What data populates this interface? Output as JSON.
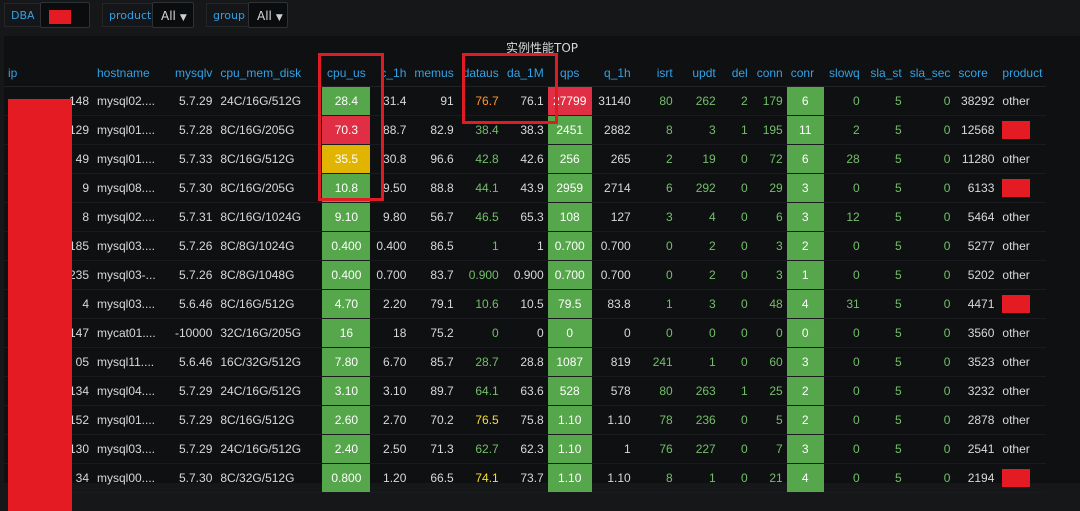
{
  "toolbar": {
    "dba_label": "DBA",
    "dba_value": "",
    "product_label": "product",
    "product_value": "All",
    "group_label": "group",
    "group_value": "All"
  },
  "panel": {
    "title": "实例性能TOP"
  },
  "table": {
    "columns": [
      "ip",
      "hostname",
      "mysqlv",
      "cpu_mem_disk",
      "cpu_us",
      "c_1h",
      "memus",
      "dataus",
      "da_1M",
      "qps",
      "q_1h",
      "isrt",
      "updt",
      "del",
      "conn",
      "conr",
      "slowq",
      "sla_st",
      "sla_sec",
      "score",
      "product"
    ],
    "rows": [
      [
        "148",
        "mysql02....",
        "5.7.29",
        "24C/16G/512G",
        "28.4",
        "31.4",
        "91",
        "76.7",
        "76.1",
        "27799",
        "31140",
        "80",
        "262",
        "2",
        "179",
        "6",
        "0",
        "5",
        "0",
        "38292",
        "other"
      ],
      [
        "129",
        "mysql01....",
        "5.7.28",
        "8C/16G/205G",
        "70.3",
        "88.7",
        "82.9",
        "38.4",
        "38.3",
        "2451",
        "2882",
        "8",
        "3",
        "1",
        "195",
        "11",
        "2",
        "5",
        "0",
        "12568",
        ""
      ],
      [
        "49",
        "mysql01....",
        "5.7.33",
        "8C/16G/512G",
        "35.5",
        "30.8",
        "96.6",
        "42.8",
        "42.6",
        "256",
        "265",
        "2",
        "19",
        "0",
        "72",
        "6",
        "28",
        "5",
        "0",
        "11280",
        "other"
      ],
      [
        "9",
        "mysql08....",
        "5.7.30",
        "8C/16G/205G",
        "10.8",
        "9.50",
        "88.8",
        "44.1",
        "43.9",
        "2959",
        "2714",
        "6",
        "292",
        "0",
        "29",
        "3",
        "0",
        "5",
        "0",
        "6133",
        ""
      ],
      [
        "8",
        "mysql02....",
        "5.7.31",
        "8C/16G/1024G",
        "9.10",
        "9.80",
        "56.7",
        "46.5",
        "65.3",
        "108",
        "127",
        "3",
        "4",
        "0",
        "6",
        "3",
        "12",
        "5",
        "0",
        "5464",
        "other"
      ],
      [
        "185",
        "mysql03....",
        "5.7.26",
        "8C/8G/1024G",
        "0.400",
        "0.400",
        "86.5",
        "1",
        "1",
        "0.700",
        "0.700",
        "0",
        "2",
        "0",
        "3",
        "2",
        "0",
        "5",
        "0",
        "5277",
        "other"
      ],
      [
        "235",
        "mysql03-...",
        "5.7.26",
        "8C/8G/1048G",
        "0.400",
        "0.700",
        "83.7",
        "0.900",
        "0.900",
        "0.700",
        "0.700",
        "0",
        "2",
        "0",
        "3",
        "1",
        "0",
        "5",
        "0",
        "5202",
        "other"
      ],
      [
        "4",
        "mysql03....",
        "5.6.46",
        "8C/16G/512G",
        "4.70",
        "2.20",
        "79.1",
        "10.6",
        "10.5",
        "79.5",
        "83.8",
        "1",
        "3",
        "0",
        "48",
        "4",
        "31",
        "5",
        "0",
        "4471",
        ""
      ],
      [
        "147",
        "mycat01....",
        "-10000",
        "32C/16G/205G",
        "16",
        "18",
        "75.2",
        "0",
        "0",
        "0",
        "0",
        "0",
        "0",
        "0",
        "0",
        "0",
        "0",
        "5",
        "0",
        "3560",
        "other"
      ],
      [
        "05",
        "mysql11....",
        "5.6.46",
        "16C/32G/512G",
        "7.80",
        "6.70",
        "85.7",
        "28.7",
        "28.8",
        "1087",
        "819",
        "241",
        "1",
        "0",
        "60",
        "3",
        "0",
        "5",
        "0",
        "3523",
        "other"
      ],
      [
        "134",
        "mysql04....",
        "5.7.29",
        "24C/16G/512G",
        "3.10",
        "3.10",
        "89.7",
        "64.1",
        "63.6",
        "528",
        "578",
        "80",
        "263",
        "1",
        "25",
        "2",
        "0",
        "5",
        "0",
        "3232",
        "other"
      ],
      [
        "152",
        "mysql01....",
        "5.7.29",
        "8C/16G/512G",
        "2.60",
        "2.70",
        "70.2",
        "76.5",
        "75.8",
        "1.10",
        "1.10",
        "78",
        "236",
        "0",
        "5",
        "2",
        "0",
        "5",
        "0",
        "2878",
        "other"
      ],
      [
        "130",
        "mysql03....",
        "5.7.29",
        "24C/16G/512G",
        "2.40",
        "2.50",
        "71.3",
        "62.7",
        "62.3",
        "1.10",
        "1",
        "76",
        "227",
        "0",
        "7",
        "3",
        "0",
        "5",
        "0",
        "2541",
        "other"
      ],
      [
        "34",
        "mysql00....",
        "5.7.30",
        "8C/32G/512G",
        "0.800",
        "1.20",
        "66.5",
        "74.1",
        "73.7",
        "1.10",
        "1.10",
        "8",
        "1",
        "0",
        "21",
        "4",
        "0",
        "5",
        "0",
        "2194",
        ""
      ]
    ],
    "cpu_us_color": [
      "g",
      "r",
      "y",
      "g",
      "g",
      "g",
      "g",
      "g",
      "g",
      "g",
      "g",
      "g",
      "g",
      "g"
    ],
    "qps_color": [
      "r",
      "g",
      "g",
      "g",
      "g",
      "g",
      "g",
      "g",
      "g",
      "g",
      "g",
      "g",
      "g",
      "g"
    ],
    "dataus_color": [
      "o",
      "g",
      "g",
      "g",
      "g",
      "g",
      "g",
      "g",
      "g",
      "g",
      "g",
      "y",
      "g",
      "y"
    ]
  },
  "colors": {
    "accent": "#33a2e5",
    "green_cell": "#56a64b",
    "red_cell": "#e02f44",
    "yellow_cell": "#e0b400",
    "redaction": "#e41b23",
    "highlight_box": "#e01b24"
  }
}
